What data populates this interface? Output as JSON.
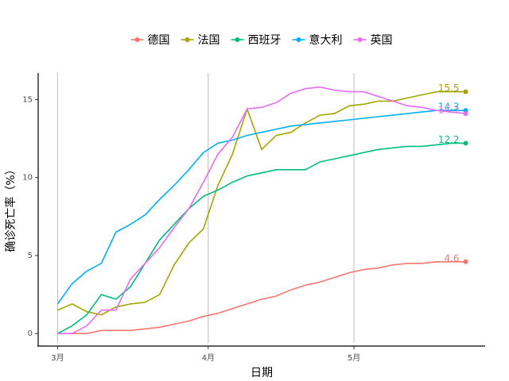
{
  "chart_data": {
    "type": "line",
    "xlabel": "日期",
    "ylabel": "确诊死亡率（%）",
    "x": [
      0,
      3,
      6,
      9,
      12,
      15,
      18,
      21,
      24,
      27,
      30,
      33,
      36,
      39,
      42,
      45,
      48,
      51,
      54,
      57,
      60,
      63,
      66,
      69,
      72,
      75,
      78,
      81,
      84
    ],
    "xlim": [
      -4,
      88
    ],
    "xticks": [
      {
        "value": 0,
        "label": "3月"
      },
      {
        "value": 31,
        "label": "4月"
      },
      {
        "value": 61,
        "label": "5月"
      }
    ],
    "ylim": [
      -0.6,
      16.7
    ],
    "yticks": [
      0,
      5,
      10,
      15
    ],
    "grid": "x-major",
    "legend": "top",
    "series": [
      {
        "name": "德国",
        "color": "#F8766D",
        "values": [
          0,
          0,
          0,
          0.2,
          0.2,
          0.2,
          0.3,
          0.4,
          0.6,
          0.8,
          1.1,
          1.3,
          1.6,
          1.9,
          2.2,
          2.4,
          2.8,
          3.1,
          3.3,
          3.6,
          3.9,
          4.1,
          4.2,
          4.4,
          4.5,
          4.5,
          4.6,
          4.6,
          4.6
        ]
      },
      {
        "name": "法国",
        "color": "#A3A500",
        "values": [
          1.5,
          1.9,
          1.4,
          1.2,
          1.7,
          1.9,
          2.0,
          2.5,
          4.4,
          5.8,
          6.7,
          9.5,
          11.5,
          14.4,
          11.8,
          12.7,
          12.9,
          13.5,
          14.0,
          14.1,
          14.6,
          14.7,
          14.9,
          14.9,
          15.1,
          15.3,
          15.5,
          15.5,
          15.5
        ]
      },
      {
        "name": "西班牙",
        "color": "#00BF7D",
        "values": [
          0,
          0.5,
          1.2,
          2.5,
          2.2,
          3.0,
          4.5,
          6.0,
          7.0,
          8.0,
          8.8,
          9.2,
          9.7,
          10.1,
          10.3,
          10.5,
          10.5,
          10.5,
          11.0,
          11.2,
          11.4,
          11.6,
          11.8,
          11.9,
          12.0,
          12.0,
          12.1,
          12.2,
          12.2
        ]
      },
      {
        "name": "意大利",
        "color": "#00B0F6",
        "values": [
          1.9,
          3.2,
          4.0,
          4.5,
          6.5,
          7.0,
          7.6,
          8.6,
          9.5,
          10.5,
          11.6,
          12.2,
          12.4,
          12.7,
          12.9,
          13.1,
          13.3,
          13.4,
          13.5,
          13.6,
          13.7,
          13.8,
          13.9,
          14.0,
          14.1,
          14.2,
          14.3,
          14.3,
          14.3
        ]
      },
      {
        "name": "英国",
        "color": "#E76BF3",
        "values": [
          0,
          0,
          0.5,
          1.5,
          1.5,
          3.5,
          4.5,
          5.5,
          6.8,
          8.0,
          9.7,
          11.5,
          12.6,
          14.4,
          14.5,
          14.8,
          15.4,
          15.7,
          15.8,
          15.6,
          15.5,
          15.5,
          15.2,
          14.9,
          14.6,
          14.5,
          14.3,
          14.2,
          14.1
        ]
      }
    ]
  }
}
